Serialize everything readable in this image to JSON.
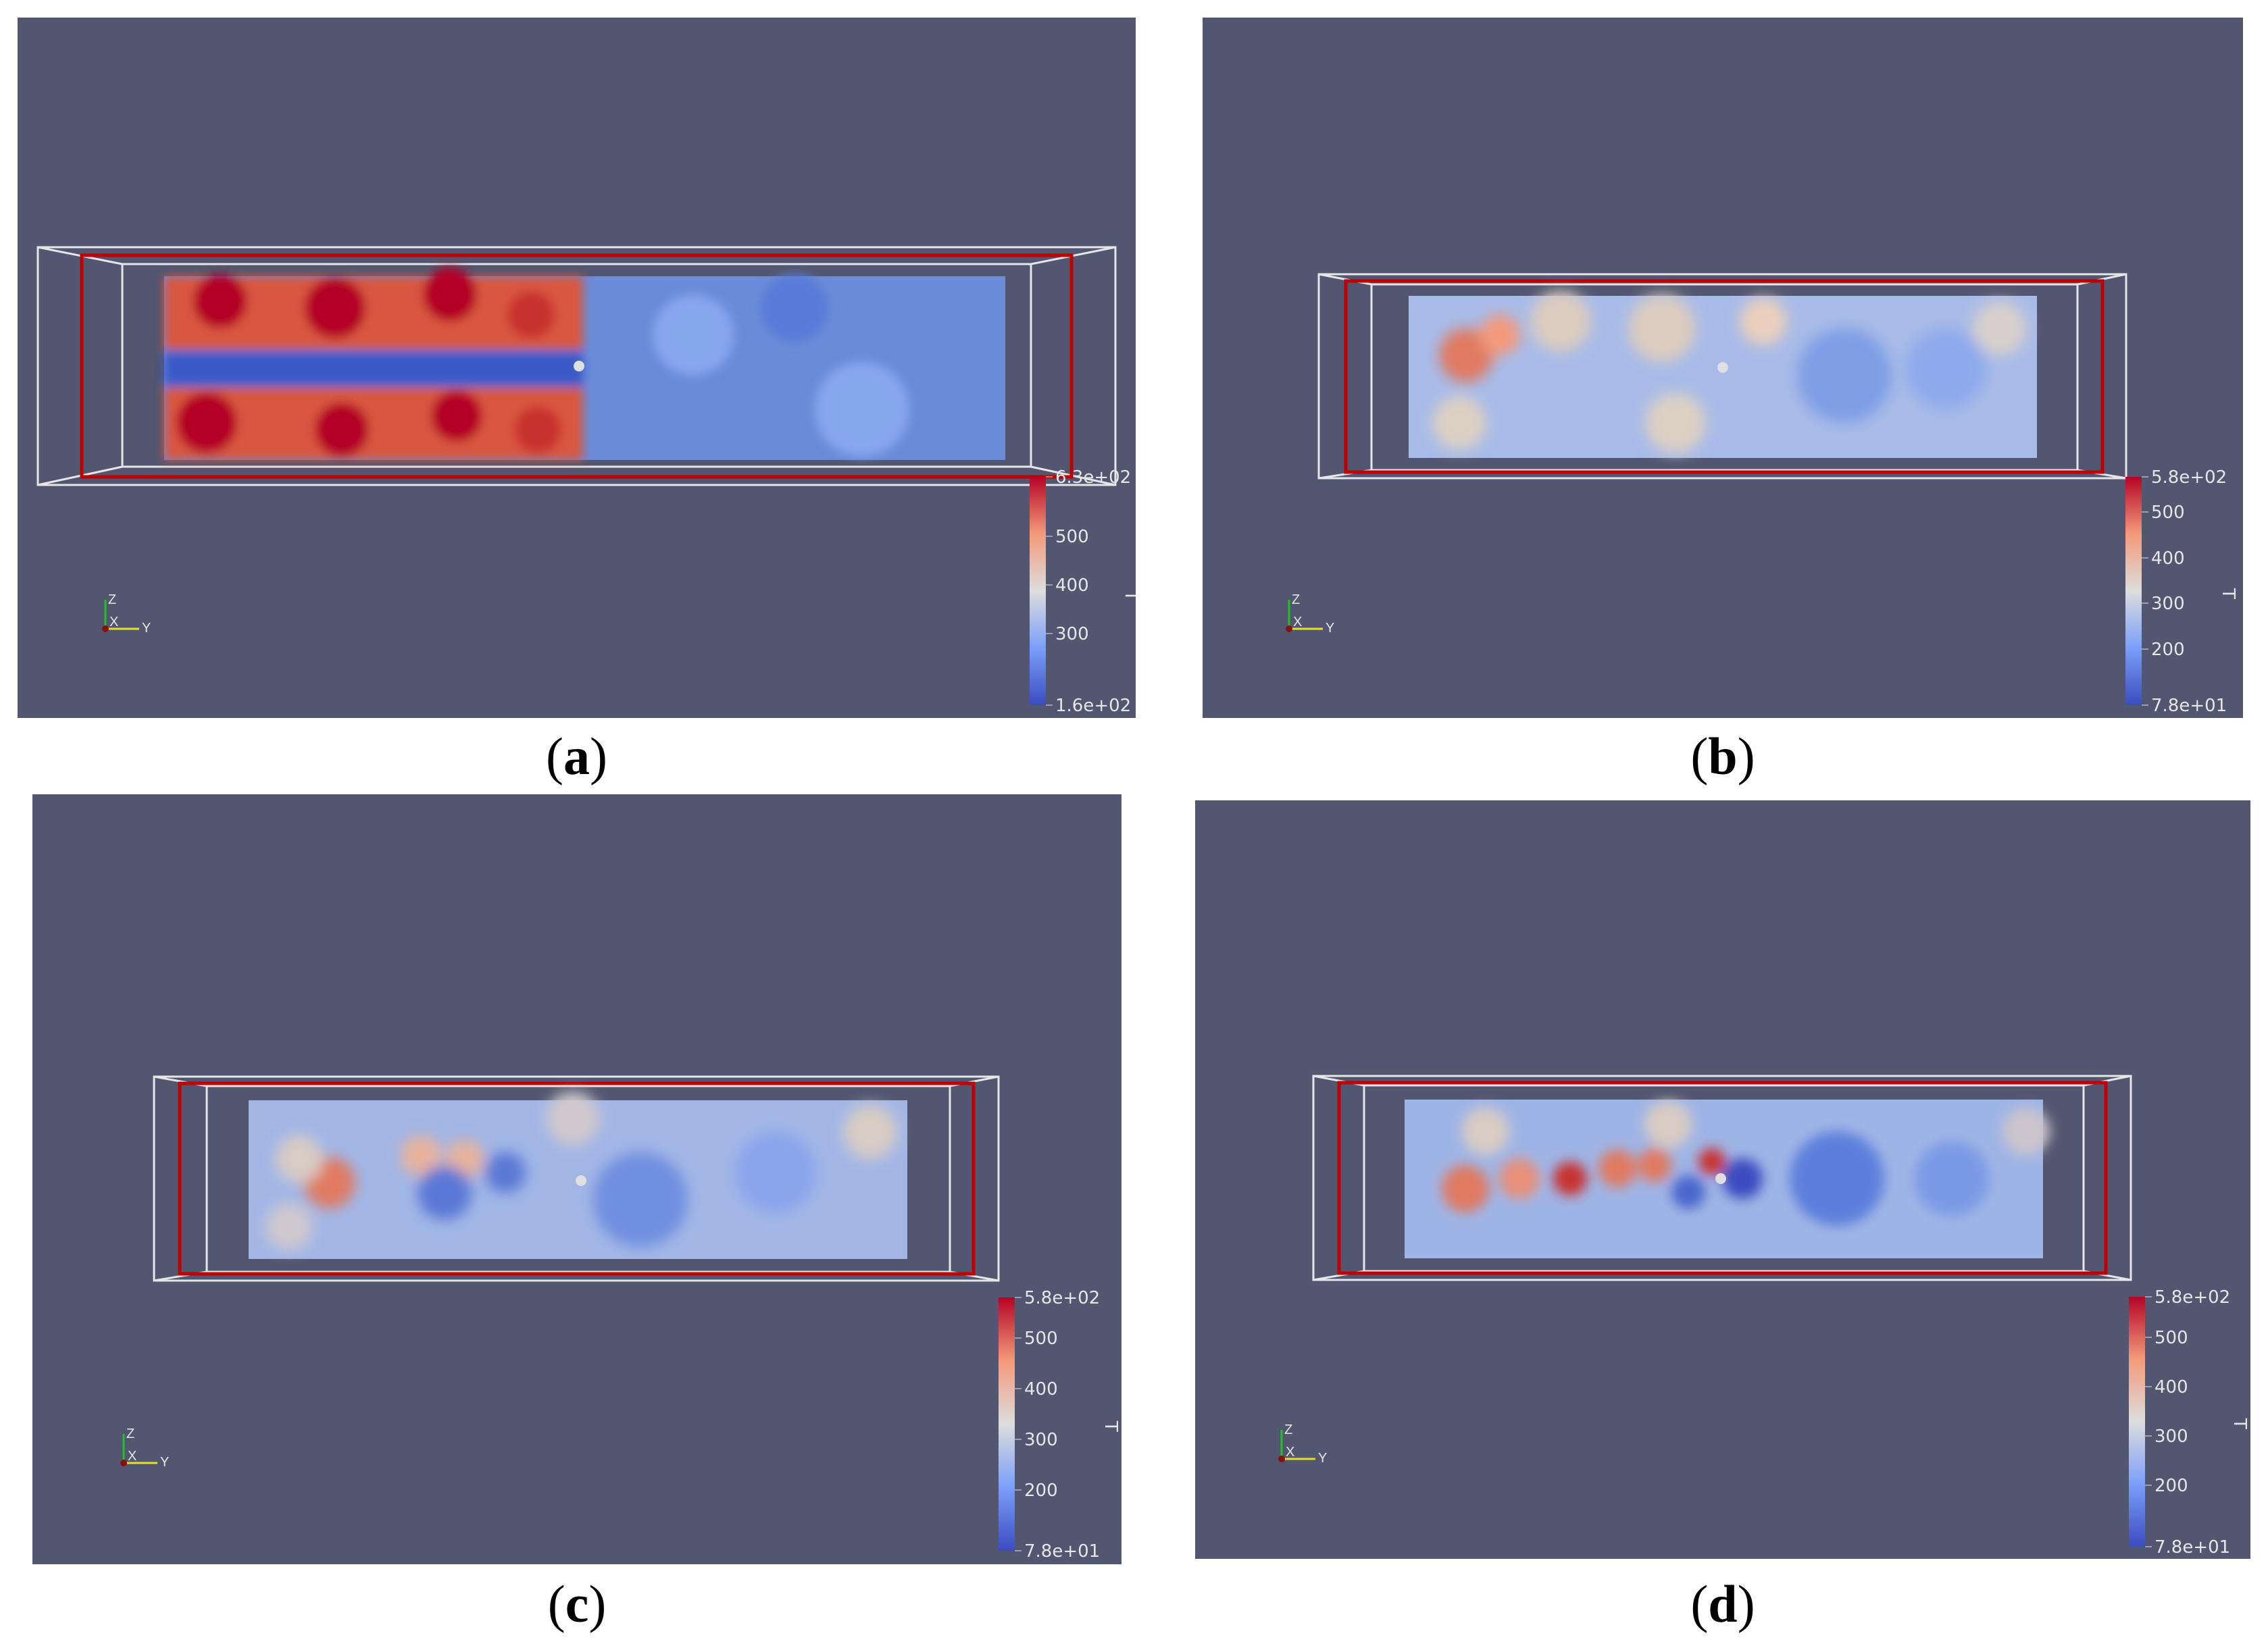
{
  "panels": [
    {
      "id": "a",
      "caption_open": "(",
      "caption_letter": "a",
      "caption_close": ")",
      "colorbar": {
        "title": "T",
        "max_label": "6.3e+02",
        "min_label": "1.6e+02",
        "ticks": [
          "500",
          "400",
          "300"
        ],
        "range": [
          160,
          630
        ]
      },
      "axes_labels": {
        "z": "Z",
        "x": "X",
        "y": "Y"
      }
    },
    {
      "id": "b",
      "caption_open": "(",
      "caption_letter": "b",
      "caption_close": ")",
      "colorbar": {
        "title": "T",
        "max_label": "5.8e+02",
        "min_label": "7.8e+01",
        "ticks": [
          "500",
          "400",
          "300",
          "200"
        ],
        "range": [
          78,
          580
        ]
      },
      "axes_labels": {
        "z": "Z",
        "x": "X",
        "y": "Y"
      }
    },
    {
      "id": "c",
      "caption_open": "(",
      "caption_letter": "c",
      "caption_close": ")",
      "colorbar": {
        "title": "T",
        "max_label": "5.8e+02",
        "min_label": "7.8e+01",
        "ticks": [
          "500",
          "400",
          "300",
          "200"
        ],
        "range": [
          78,
          580
        ]
      },
      "axes_labels": {
        "z": "Z",
        "x": "X",
        "y": "Y"
      }
    },
    {
      "id": "d",
      "caption_open": "(",
      "caption_letter": "d",
      "caption_close": ")",
      "colorbar": {
        "title": "T",
        "max_label": "5.8e+02",
        "min_label": "7.8e+01",
        "ticks": [
          "500",
          "400",
          "300",
          "200"
        ],
        "range": [
          78,
          580
        ]
      },
      "axes_labels": {
        "z": "Z",
        "x": "X",
        "y": "Y"
      }
    }
  ],
  "colors": {
    "background": "#525670",
    "hot": "#b40426",
    "cold": "#3b4cc0",
    "mid": "#dddddd",
    "frame_red": "#c00000",
    "frame_white": "#e6e6e6"
  }
}
